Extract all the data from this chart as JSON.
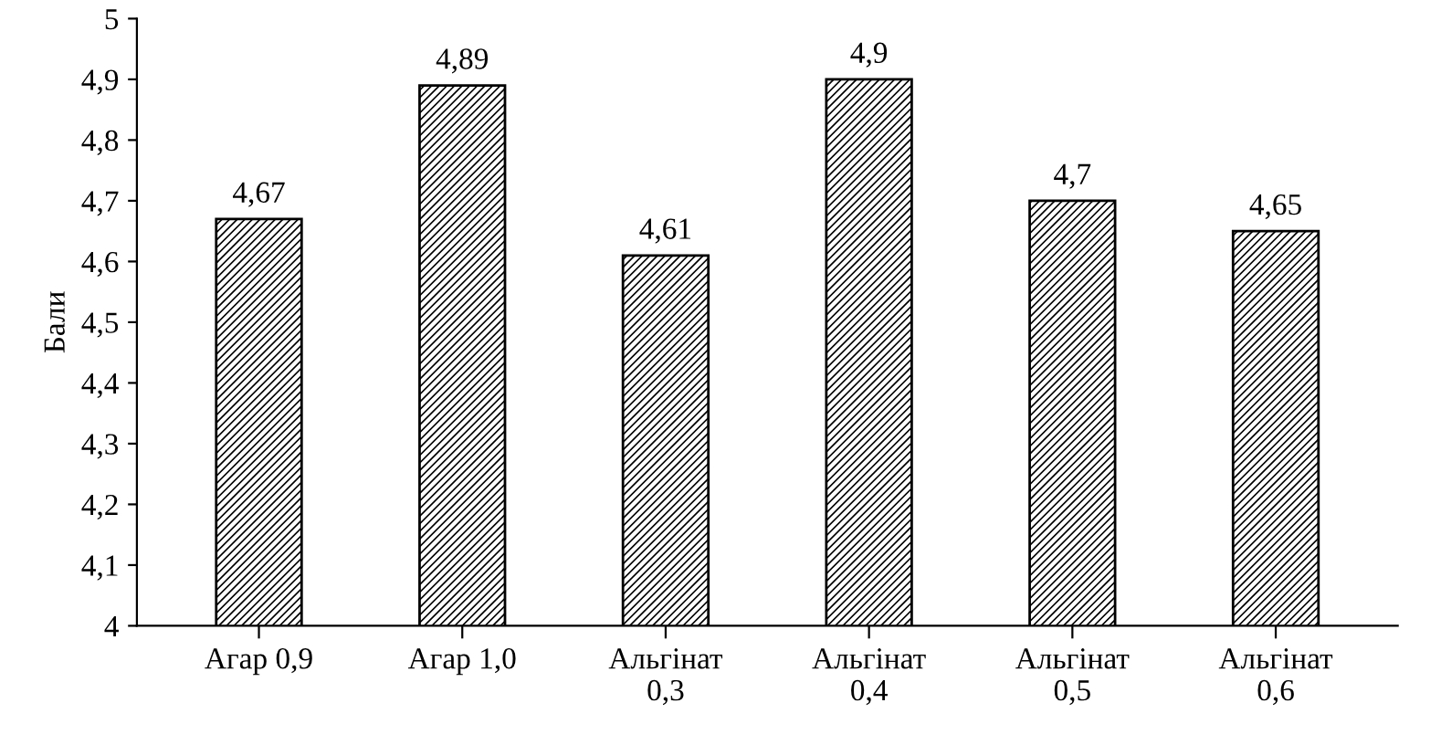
{
  "chart_data": {
    "type": "bar",
    "ylabel": "Бали",
    "categories": [
      "Агар 0,9",
      "Агар 1,0",
      "Альгінат\n0,3",
      "Альгінат\n0,4",
      "Альгінат\n0,5",
      "Альгінат\n0,6"
    ],
    "values": [
      4.67,
      4.89,
      4.61,
      4.9,
      4.7,
      4.65
    ],
    "value_labels": [
      "4,67",
      "4,89",
      "4,61",
      "4,9",
      "4,7",
      "4,65"
    ],
    "color": "#000000",
    "ylim": [
      4,
      5
    ],
    "yticks": [
      4,
      {
        "value": 4.1,
        "label": "4,1"
      },
      {
        "value": 4.2,
        "label": "4,2"
      },
      {
        "value": 4.3,
        "label": "4,3"
      },
      {
        "value": 4.4,
        "label": "4,4"
      },
      {
        "value": 4.5,
        "label": "4,5"
      },
      {
        "value": 4.6,
        "label": "4,6"
      },
      {
        "value": 4.7,
        "label": "4,7"
      },
      {
        "value": 4.8,
        "label": "4,8"
      },
      {
        "value": 4.9,
        "label": "4,9"
      },
      5
    ],
    "grid": false
  }
}
